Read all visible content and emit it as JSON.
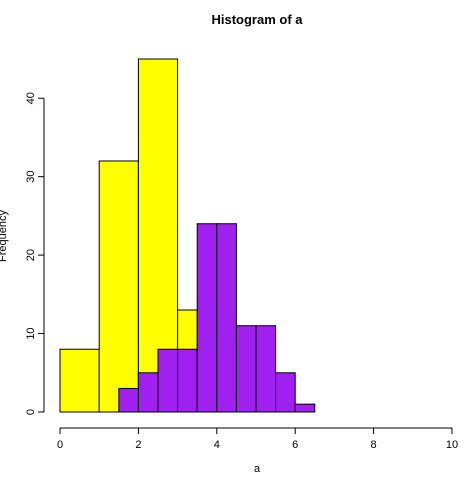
{
  "chart_data": {
    "type": "bar",
    "title": "Histogram of a",
    "xlabel": "a",
    "ylabel": "Frequency",
    "xlim": [
      0,
      10
    ],
    "ylim": [
      0,
      45
    ],
    "x_ticks": [
      0,
      2,
      4,
      6,
      8,
      10
    ],
    "y_ticks": [
      0,
      10,
      20,
      30,
      40
    ],
    "series": [
      {
        "color": "#ffff00",
        "bins": [
          {
            "x0": 0,
            "x1": 1,
            "count": 8
          },
          {
            "x0": 1,
            "x1": 2,
            "count": 32
          },
          {
            "x0": 2,
            "x1": 3,
            "count": 45
          },
          {
            "x0": 3,
            "x1": 3.5,
            "count": 13
          }
        ]
      },
      {
        "color": "#a020f0",
        "bins": [
          {
            "x0": 1.5,
            "x1": 2,
            "count": 3
          },
          {
            "x0": 2,
            "x1": 2.5,
            "count": 5
          },
          {
            "x0": 2.5,
            "x1": 3,
            "count": 8
          },
          {
            "x0": 3,
            "x1": 3.5,
            "count": 8
          },
          {
            "x0": 3.5,
            "x1": 4,
            "count": 24
          },
          {
            "x0": 4,
            "x1": 4.5,
            "count": 24
          },
          {
            "x0": 4.5,
            "x1": 5,
            "count": 11
          },
          {
            "x0": 5,
            "x1": 5.5,
            "count": 11
          },
          {
            "x0": 5.5,
            "x1": 6,
            "count": 5
          },
          {
            "x0": 6,
            "x1": 6.5,
            "count": 1
          }
        ]
      }
    ]
  }
}
